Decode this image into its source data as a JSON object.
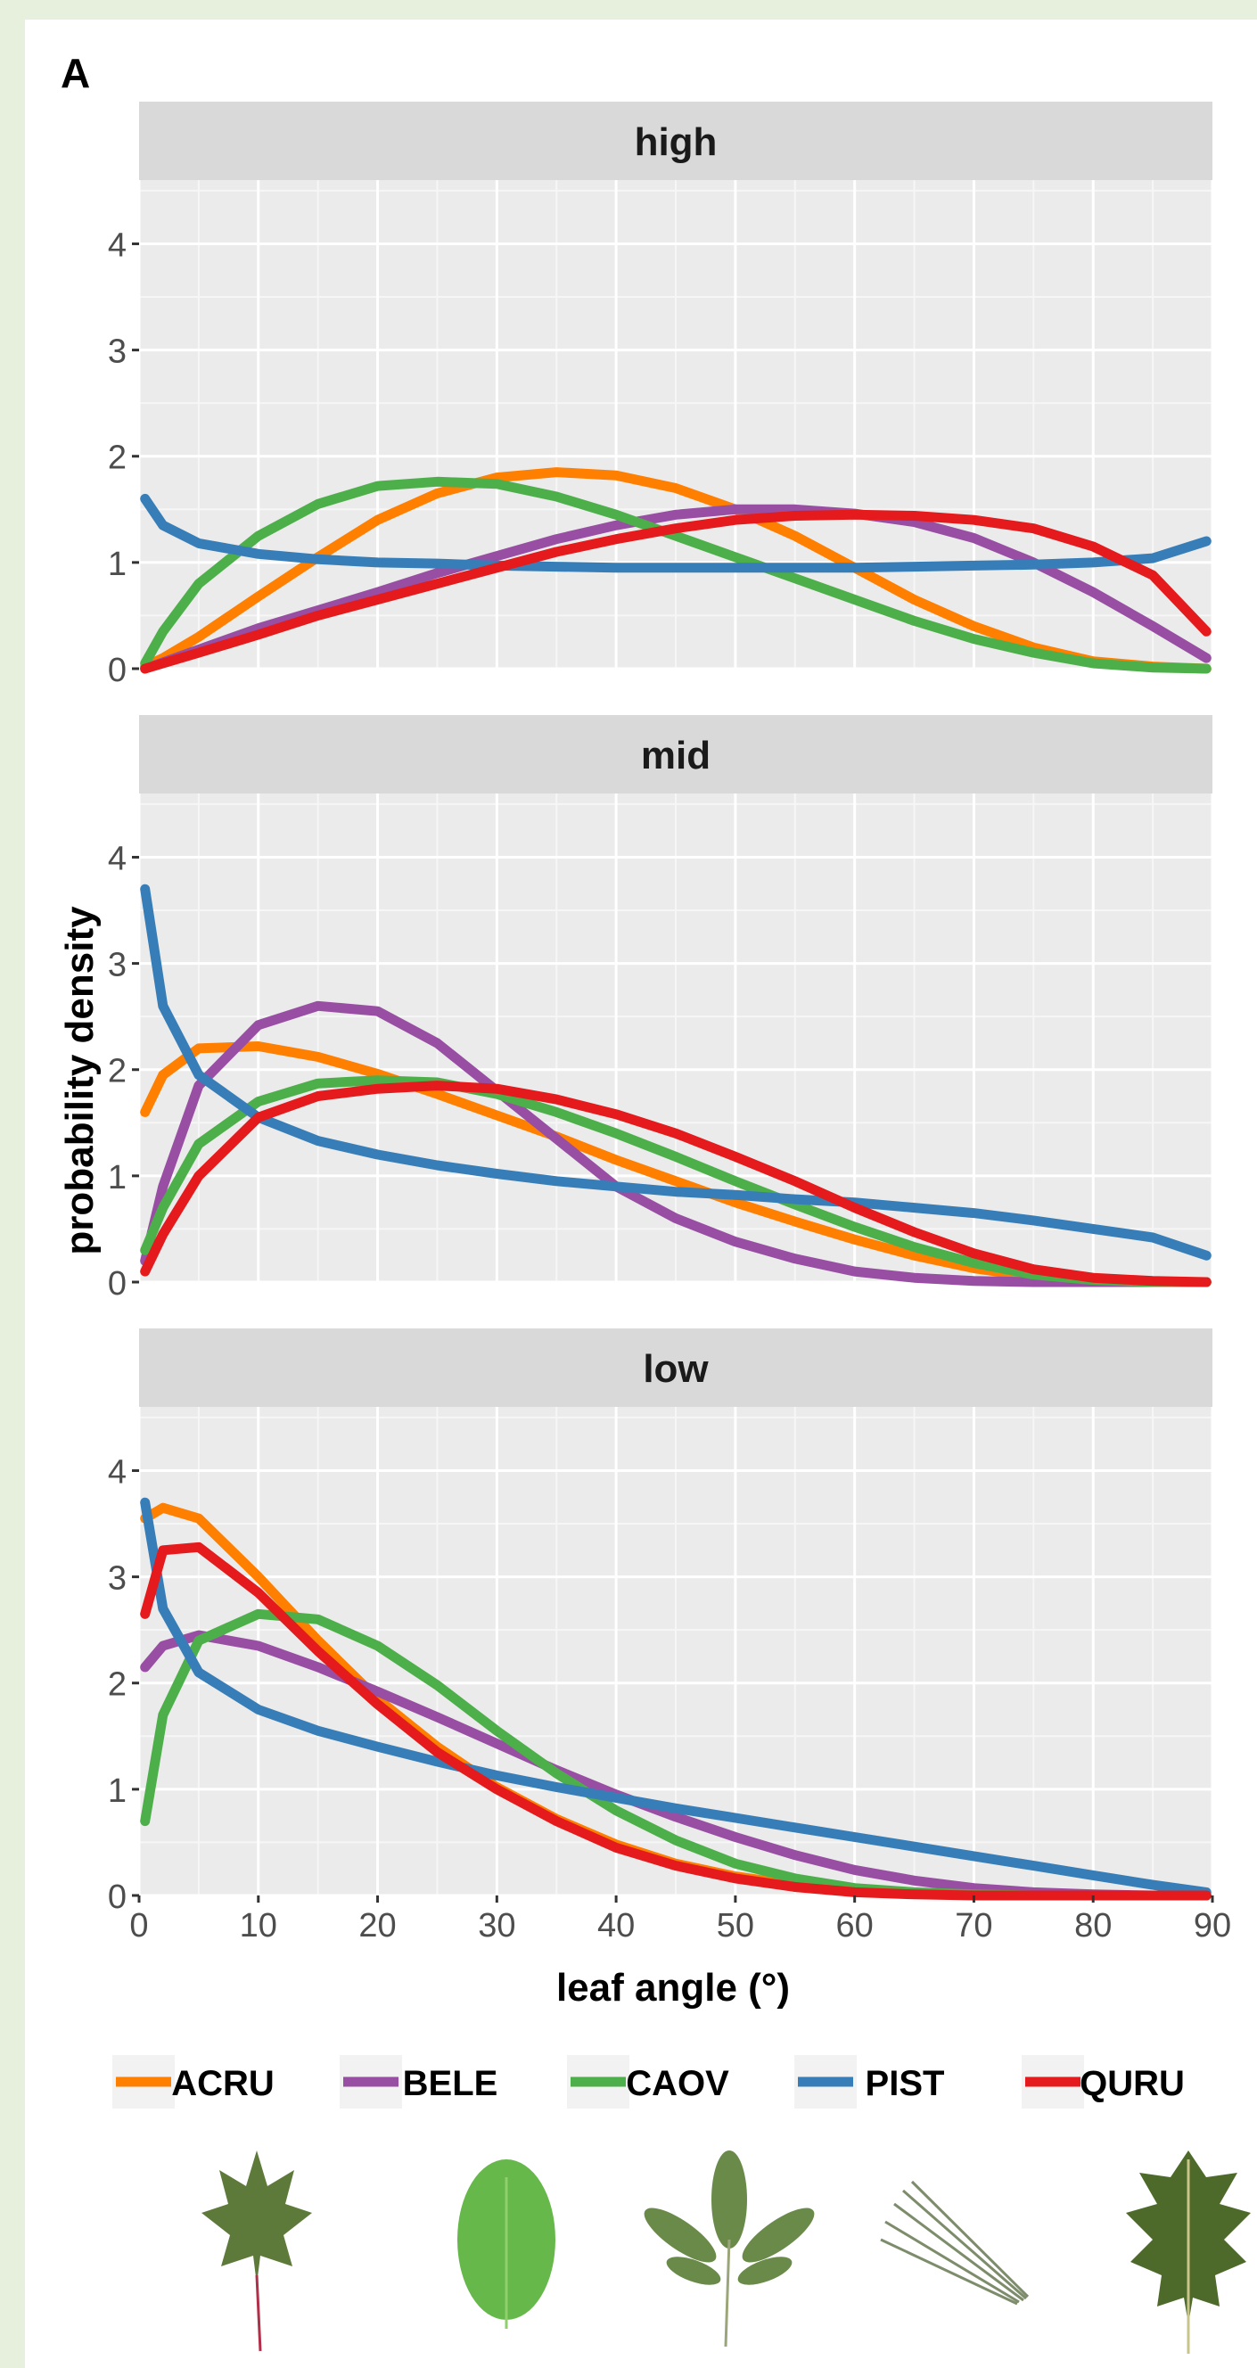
{
  "panel_label": "A",
  "chart_data": {
    "type": "line",
    "facets": [
      "high",
      "mid",
      "low"
    ],
    "xlabel": "leaf angle (°)",
    "ylabel": "probability density",
    "xlim": [
      0,
      90
    ],
    "ylim": [
      0,
      4
    ],
    "x_ticks": [
      0,
      10,
      20,
      30,
      40,
      50,
      60,
      70,
      80,
      90
    ],
    "y_ticks": [
      0,
      1,
      2,
      3,
      4
    ],
    "grid": true,
    "legend_position": "bottom",
    "x": [
      0.5,
      2,
      5,
      10,
      15,
      20,
      25,
      30,
      35,
      40,
      45,
      50,
      55,
      60,
      65,
      70,
      75,
      80,
      85,
      89.5
    ],
    "panels": [
      {
        "facet": "high",
        "series": [
          {
            "name": "ACRU",
            "color": "#ff7f00",
            "values": [
              0.02,
              0.1,
              0.3,
              0.68,
              1.05,
              1.4,
              1.65,
              1.8,
              1.85,
              1.82,
              1.7,
              1.5,
              1.25,
              0.95,
              0.65,
              0.4,
              0.2,
              0.07,
              0.02,
              0.0
            ]
          },
          {
            "name": "BELE",
            "color": "#984ea3",
            "values": [
              0.0,
              0.06,
              0.18,
              0.38,
              0.55,
              0.72,
              0.9,
              1.06,
              1.22,
              1.35,
              1.45,
              1.5,
              1.5,
              1.46,
              1.38,
              1.23,
              1.0,
              0.72,
              0.4,
              0.1
            ]
          },
          {
            "name": "CAOV",
            "color": "#4daf4a",
            "values": [
              0.05,
              0.35,
              0.8,
              1.25,
              1.55,
              1.72,
              1.76,
              1.74,
              1.62,
              1.45,
              1.25,
              1.05,
              0.85,
              0.65,
              0.45,
              0.28,
              0.15,
              0.05,
              0.01,
              0.0
            ]
          },
          {
            "name": "PIST",
            "color": "#377eb8",
            "values": [
              1.6,
              1.35,
              1.18,
              1.08,
              1.03,
              1.0,
              0.99,
              0.97,
              0.96,
              0.95,
              0.95,
              0.95,
              0.95,
              0.95,
              0.96,
              0.97,
              0.98,
              1.0,
              1.04,
              1.2
            ]
          },
          {
            "name": "QURU",
            "color": "#e41a1c",
            "values": [
              0.0,
              0.05,
              0.15,
              0.32,
              0.5,
              0.65,
              0.8,
              0.95,
              1.1,
              1.22,
              1.32,
              1.4,
              1.44,
              1.45,
              1.44,
              1.4,
              1.32,
              1.15,
              0.88,
              0.35
            ]
          }
        ]
      },
      {
        "facet": "mid",
        "series": [
          {
            "name": "ACRU",
            "color": "#ff7f00",
            "values": [
              1.6,
              1.95,
              2.2,
              2.22,
              2.12,
              1.96,
              1.77,
              1.57,
              1.37,
              1.15,
              0.95,
              0.75,
              0.57,
              0.4,
              0.25,
              0.13,
              0.05,
              0.01,
              0.0,
              0.0
            ]
          },
          {
            "name": "BELE",
            "color": "#984ea3",
            "values": [
              0.2,
              0.9,
              1.85,
              2.42,
              2.6,
              2.55,
              2.25,
              1.8,
              1.35,
              0.9,
              0.6,
              0.38,
              0.22,
              0.1,
              0.04,
              0.01,
              0.0,
              0.0,
              0.0,
              0.0
            ]
          },
          {
            "name": "CAOV",
            "color": "#4daf4a",
            "values": [
              0.3,
              0.7,
              1.3,
              1.7,
              1.87,
              1.9,
              1.88,
              1.77,
              1.6,
              1.4,
              1.18,
              0.95,
              0.73,
              0.52,
              0.33,
              0.18,
              0.07,
              0.02,
              0.0,
              0.0
            ]
          },
          {
            "name": "PIST",
            "color": "#377eb8",
            "values": [
              3.7,
              2.6,
              1.95,
              1.55,
              1.33,
              1.2,
              1.1,
              1.02,
              0.95,
              0.9,
              0.85,
              0.82,
              0.78,
              0.75,
              0.7,
              0.65,
              0.58,
              0.5,
              0.42,
              0.25
            ]
          },
          {
            "name": "QURU",
            "color": "#e41a1c",
            "values": [
              0.1,
              0.45,
              1.0,
              1.55,
              1.75,
              1.82,
              1.85,
              1.82,
              1.72,
              1.58,
              1.4,
              1.18,
              0.95,
              0.7,
              0.47,
              0.27,
              0.12,
              0.04,
              0.01,
              0.0
            ]
          }
        ]
      },
      {
        "facet": "low",
        "series": [
          {
            "name": "ACRU",
            "color": "#ff7f00",
            "values": [
              3.55,
              3.65,
              3.55,
              3.0,
              2.4,
              1.85,
              1.4,
              1.02,
              0.72,
              0.48,
              0.3,
              0.18,
              0.1,
              0.05,
              0.02,
              0.01,
              0.0,
              0.0,
              0.0,
              0.0
            ]
          },
          {
            "name": "BELE",
            "color": "#984ea3",
            "values": [
              2.15,
              2.35,
              2.45,
              2.35,
              2.15,
              1.92,
              1.68,
              1.43,
              1.18,
              0.95,
              0.74,
              0.55,
              0.38,
              0.24,
              0.14,
              0.07,
              0.03,
              0.01,
              0.0,
              0.0
            ]
          },
          {
            "name": "CAOV",
            "color": "#4daf4a",
            "values": [
              0.7,
              1.7,
              2.4,
              2.65,
              2.6,
              2.35,
              1.98,
              1.55,
              1.15,
              0.8,
              0.52,
              0.3,
              0.16,
              0.07,
              0.03,
              0.01,
              0.0,
              0.0,
              0.0,
              0.0
            ]
          },
          {
            "name": "PIST",
            "color": "#377eb8",
            "values": [
              3.7,
              2.7,
              2.1,
              1.75,
              1.55,
              1.4,
              1.26,
              1.13,
              1.02,
              0.92,
              0.82,
              0.73,
              0.64,
              0.55,
              0.46,
              0.37,
              0.28,
              0.19,
              0.1,
              0.03
            ]
          },
          {
            "name": "QURU",
            "color": "#e41a1c",
            "values": [
              2.65,
              3.25,
              3.28,
              2.85,
              2.3,
              1.8,
              1.35,
              1.0,
              0.7,
              0.45,
              0.28,
              0.16,
              0.08,
              0.03,
              0.01,
              0.0,
              0.0,
              0.0,
              0.0,
              0.0
            ]
          }
        ]
      }
    ]
  }
}
